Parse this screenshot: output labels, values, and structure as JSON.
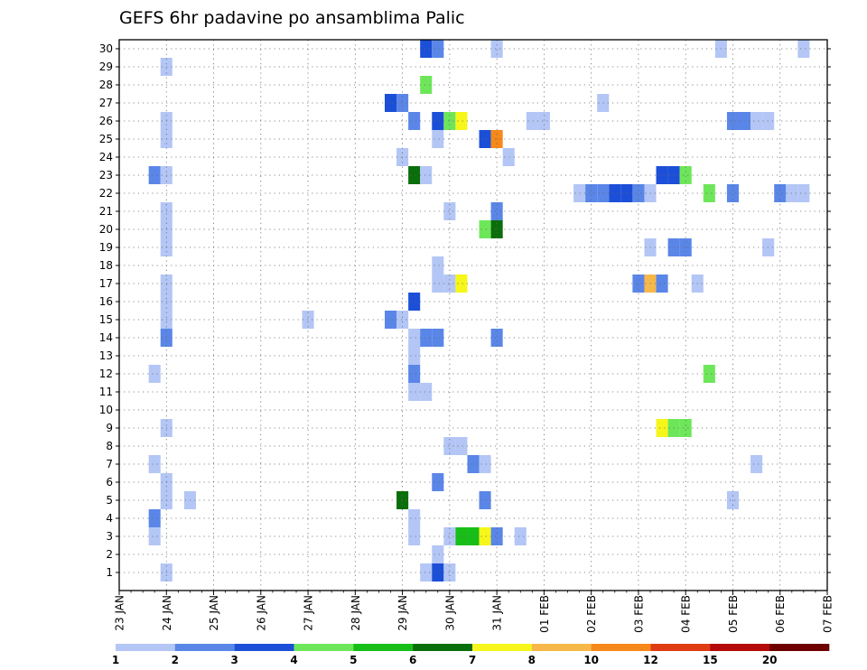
{
  "chart_data": {
    "type": "heatmap",
    "title": "GEFS 6hr padavine po ansamblima Palic",
    "xlabel": "",
    "ylabel": "",
    "grid": true,
    "y_range": [
      0,
      30
    ],
    "y_ticks": [
      "1",
      "2",
      "3",
      "4",
      "5",
      "6",
      "7",
      "8",
      "9",
      "10",
      "11",
      "12",
      "13",
      "14",
      "15",
      "16",
      "17",
      "18",
      "19",
      "20",
      "21",
      "22",
      "23",
      "24",
      "25",
      "26",
      "27",
      "28",
      "29",
      "30"
    ],
    "x_ticks": [
      "23 JAN",
      "24 JAN",
      "25 JAN",
      "26 JAN",
      "27 JAN",
      "28 JAN",
      "29 JAN",
      "30 JAN",
      "31 JAN",
      "01 FEB",
      "02 FEB",
      "03 FEB",
      "04 FEB",
      "05 FEB",
      "06 FEB",
      "07 FEB"
    ],
    "x_step": "6hr",
    "colorbar": {
      "labels": [
        "1",
        "2",
        "3",
        "4",
        "5",
        "6",
        "7",
        "8",
        "10",
        "12",
        "15",
        "20"
      ],
      "colors": [
        "#b3c6f5",
        "#5a86e8",
        "#1c4fd8",
        "#6ee65a",
        "#18be18",
        "#0a6e0a",
        "#f6f61a",
        "#f7b84a",
        "#f7881a",
        "#e03c14",
        "#b40a0a",
        "#6e0000"
      ]
    },
    "cells": [
      {
        "y": 30,
        "x": "29 JAN 12",
        "level": 3
      },
      {
        "y": 30,
        "x": "29 JAN 18",
        "level": 2
      },
      {
        "y": 30,
        "x": "31 JAN 00",
        "level": 1
      },
      {
        "y": 30,
        "x": "04 FEB 18",
        "level": 1
      },
      {
        "y": 30,
        "x": "06 FEB 12",
        "level": 1
      },
      {
        "y": 29,
        "x": "24 JAN 00",
        "level": 1
      },
      {
        "y": 28,
        "x": "29 JAN 12",
        "level": 4
      },
      {
        "y": 27,
        "x": "28 JAN 18",
        "level": 3
      },
      {
        "y": 27,
        "x": "29 JAN 00",
        "level": 2
      },
      {
        "y": 27,
        "x": "02 FEB 06",
        "level": 1
      },
      {
        "y": 26,
        "x": "24 JAN 00",
        "level": 1
      },
      {
        "y": 26,
        "x": "29 JAN 06",
        "level": 2
      },
      {
        "y": 26,
        "x": "29 JAN 18",
        "level": 3
      },
      {
        "y": 26,
        "x": "30 JAN 00",
        "level": 4
      },
      {
        "y": 26,
        "x": "30 JAN 06",
        "level": 7
      },
      {
        "y": 26,
        "x": "31 JAN 18",
        "level": 1
      },
      {
        "y": 26,
        "x": "01 FEB 00",
        "level": 1
      },
      {
        "y": 26,
        "x": "05 FEB 00",
        "level": 2
      },
      {
        "y": 26,
        "x": "05 FEB 06",
        "level": 2
      },
      {
        "y": 26,
        "x": "05 FEB 12",
        "level": 1
      },
      {
        "y": 26,
        "x": "05 FEB 18",
        "level": 1
      },
      {
        "y": 25,
        "x": "24 JAN 00",
        "level": 1
      },
      {
        "y": 25,
        "x": "29 JAN 18",
        "level": 1
      },
      {
        "y": 25,
        "x": "30 JAN 18",
        "level": 3
      },
      {
        "y": 25,
        "x": "31 JAN 00",
        "level": 9
      },
      {
        "y": 24,
        "x": "29 JAN 00",
        "level": 1
      },
      {
        "y": 24,
        "x": "31 JAN 06",
        "level": 1
      },
      {
        "y": 23,
        "x": "23 JAN 18",
        "level": 2
      },
      {
        "y": 23,
        "x": "24 JAN 00",
        "level": 1
      },
      {
        "y": 23,
        "x": "29 JAN 06",
        "level": 6
      },
      {
        "y": 23,
        "x": "29 JAN 12",
        "level": 1
      },
      {
        "y": 23,
        "x": "03 FEB 12",
        "level": 3
      },
      {
        "y": 23,
        "x": "03 FEB 18",
        "level": 3
      },
      {
        "y": 23,
        "x": "04 FEB 00",
        "level": 4
      },
      {
        "y": 22,
        "x": "01 FEB 18",
        "level": 1
      },
      {
        "y": 22,
        "x": "02 FEB 00",
        "level": 2
      },
      {
        "y": 22,
        "x": "02 FEB 06",
        "level": 2
      },
      {
        "y": 22,
        "x": "02 FEB 12",
        "level": 3
      },
      {
        "y": 22,
        "x": "02 FEB 18",
        "level": 3
      },
      {
        "y": 22,
        "x": "03 FEB 00",
        "level": 2
      },
      {
        "y": 22,
        "x": "03 FEB 06",
        "level": 1
      },
      {
        "y": 22,
        "x": "04 FEB 12",
        "level": 4
      },
      {
        "y": 22,
        "x": "05 FEB 00",
        "level": 2
      },
      {
        "y": 22,
        "x": "06 FEB 00",
        "level": 2
      },
      {
        "y": 22,
        "x": "06 FEB 06",
        "level": 1
      },
      {
        "y": 22,
        "x": "06 FEB 12",
        "level": 1
      },
      {
        "y": 21,
        "x": "24 JAN 00",
        "level": 1
      },
      {
        "y": 21,
        "x": "30 JAN 00",
        "level": 1
      },
      {
        "y": 21,
        "x": "31 JAN 00",
        "level": 2
      },
      {
        "y": 20,
        "x": "24 JAN 00",
        "level": 1
      },
      {
        "y": 20,
        "x": "30 JAN 18",
        "level": 4
      },
      {
        "y": 20,
        "x": "31 JAN 00",
        "level": 6
      },
      {
        "y": 19,
        "x": "24 JAN 00",
        "level": 1
      },
      {
        "y": 19,
        "x": "03 FEB 06",
        "level": 1
      },
      {
        "y": 19,
        "x": "03 FEB 18",
        "level": 2
      },
      {
        "y": 19,
        "x": "04 FEB 00",
        "level": 2
      },
      {
        "y": 19,
        "x": "05 FEB 18",
        "level": 1
      },
      {
        "y": 18,
        "x": "29 JAN 18",
        "level": 1
      },
      {
        "y": 17,
        "x": "24 JAN 00",
        "level": 1
      },
      {
        "y": 17,
        "x": "29 JAN 18",
        "level": 1
      },
      {
        "y": 17,
        "x": "30 JAN 00",
        "level": 1
      },
      {
        "y": 17,
        "x": "30 JAN 06",
        "level": 7
      },
      {
        "y": 17,
        "x": "03 FEB 00",
        "level": 2
      },
      {
        "y": 17,
        "x": "03 FEB 06",
        "level": 8
      },
      {
        "y": 17,
        "x": "03 FEB 12",
        "level": 2
      },
      {
        "y": 17,
        "x": "04 FEB 06",
        "level": 1
      },
      {
        "y": 16,
        "x": "24 JAN 00",
        "level": 1
      },
      {
        "y": 16,
        "x": "29 JAN 06",
        "level": 3
      },
      {
        "y": 15,
        "x": "24 JAN 00",
        "level": 1
      },
      {
        "y": 15,
        "x": "27 JAN 00",
        "level": 1
      },
      {
        "y": 15,
        "x": "28 JAN 18",
        "level": 2
      },
      {
        "y": 15,
        "x": "29 JAN 00",
        "level": 1
      },
      {
        "y": 14,
        "x": "24 JAN 00",
        "level": 2
      },
      {
        "y": 14,
        "x": "29 JAN 06",
        "level": 1
      },
      {
        "y": 14,
        "x": "29 JAN 12",
        "level": 2
      },
      {
        "y": 14,
        "x": "29 JAN 18",
        "level": 2
      },
      {
        "y": 14,
        "x": "31 JAN 00",
        "level": 2
      },
      {
        "y": 13,
        "x": "29 JAN 06",
        "level": 1
      },
      {
        "y": 12,
        "x": "23 JAN 18",
        "level": 1
      },
      {
        "y": 12,
        "x": "29 JAN 06",
        "level": 2
      },
      {
        "y": 12,
        "x": "04 FEB 12",
        "level": 4
      },
      {
        "y": 11,
        "x": "29 JAN 06",
        "level": 1
      },
      {
        "y": 11,
        "x": "29 JAN 12",
        "level": 1
      },
      {
        "y": 9,
        "x": "24 JAN 00",
        "level": 1
      },
      {
        "y": 9,
        "x": "03 FEB 12",
        "level": 7
      },
      {
        "y": 9,
        "x": "03 FEB 18",
        "level": 4
      },
      {
        "y": 9,
        "x": "04 FEB 00",
        "level": 4
      },
      {
        "y": 8,
        "x": "30 JAN 00",
        "level": 1
      },
      {
        "y": 8,
        "x": "30 JAN 06",
        "level": 1
      },
      {
        "y": 7,
        "x": "23 JAN 18",
        "level": 1
      },
      {
        "y": 7,
        "x": "30 JAN 12",
        "level": 2
      },
      {
        "y": 7,
        "x": "30 JAN 18",
        "level": 1
      },
      {
        "y": 7,
        "x": "05 FEB 12",
        "level": 1
      },
      {
        "y": 6,
        "x": "24 JAN 00",
        "level": 1
      },
      {
        "y": 6,
        "x": "29 JAN 18",
        "level": 2
      },
      {
        "y": 5,
        "x": "24 JAN 00",
        "level": 1
      },
      {
        "y": 5,
        "x": "24 JAN 12",
        "level": 1
      },
      {
        "y": 5,
        "x": "29 JAN 00",
        "level": 6
      },
      {
        "y": 5,
        "x": "30 JAN 18",
        "level": 2
      },
      {
        "y": 5,
        "x": "05 FEB 00",
        "level": 1
      },
      {
        "y": 4,
        "x": "23 JAN 18",
        "level": 2
      },
      {
        "y": 4,
        "x": "29 JAN 06",
        "level": 1
      },
      {
        "y": 3,
        "x": "23 JAN 18",
        "level": 1
      },
      {
        "y": 3,
        "x": "29 JAN 06",
        "level": 1
      },
      {
        "y": 3,
        "x": "30 JAN 00",
        "level": 1
      },
      {
        "y": 3,
        "x": "30 JAN 06",
        "level": 5
      },
      {
        "y": 3,
        "x": "30 JAN 12",
        "level": 5
      },
      {
        "y": 3,
        "x": "30 JAN 18",
        "level": 7
      },
      {
        "y": 3,
        "x": "31 JAN 00",
        "level": 2
      },
      {
        "y": 3,
        "x": "31 JAN 12",
        "level": 1
      },
      {
        "y": 2,
        "x": "29 JAN 18",
        "level": 1
      },
      {
        "y": 1,
        "x": "24 JAN 00",
        "level": 1
      },
      {
        "y": 1,
        "x": "29 JAN 12",
        "level": 1
      },
      {
        "y": 1,
        "x": "29 JAN 18",
        "level": 3
      },
      {
        "y": 1,
        "x": "30 JAN 00",
        "level": 1
      }
    ]
  }
}
